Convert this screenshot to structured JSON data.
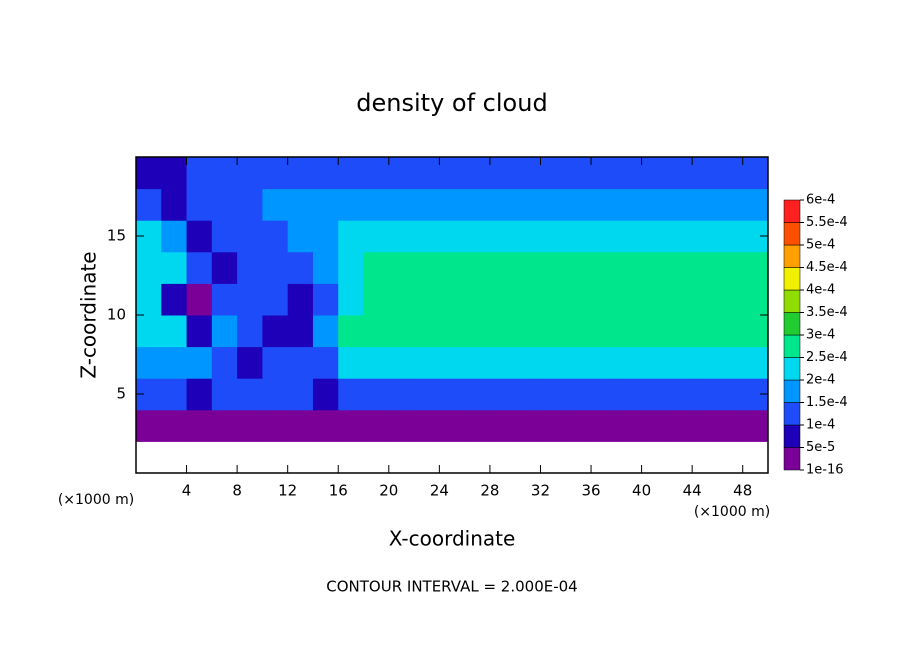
{
  "chart_data": {
    "type": "heatmap",
    "title": "density of cloud",
    "x_label": "X-coordinate",
    "y_label": "Z-coordinate",
    "x_unit": "(×1000 m)",
    "y_unit": "(×1000 m)",
    "footnote": "CONTOUR INTERVAL = 2.000E-04",
    "xlim": [
      0,
      50
    ],
    "xticks": [
      4,
      8,
      12,
      16,
      20,
      24,
      28,
      32,
      36,
      40,
      44,
      48
    ],
    "ylim": [
      0,
      20
    ],
    "yticks": [
      5,
      10,
      15
    ],
    "x": [
      1,
      3,
      5,
      7,
      9,
      11,
      13,
      15,
      17,
      19,
      21,
      23,
      25,
      27,
      29,
      31,
      33,
      35,
      37,
      39,
      41,
      43,
      45,
      47,
      49
    ],
    "y": [
      1,
      3,
      5,
      7,
      9,
      11,
      13,
      15,
      17,
      19
    ],
    "z": [
      [
        null,
        null,
        null,
        null,
        null,
        null,
        null,
        null,
        null,
        null,
        null,
        null,
        null,
        null,
        null,
        null,
        null,
        null,
        null,
        null,
        null,
        null,
        null,
        null,
        null
      ],
      [
        3e-05,
        3e-05,
        3e-05,
        3e-05,
        3e-05,
        3e-05,
        3e-05,
        3e-05,
        3e-05,
        3e-05,
        3e-05,
        3e-05,
        3e-05,
        3e-05,
        3e-05,
        3e-05,
        3e-05,
        3e-05,
        3e-05,
        3e-05,
        3e-05,
        3e-05,
        3e-05,
        3e-05,
        3e-05
      ],
      [
        0.00012,
        0.00012,
        8e-05,
        0.0001,
        0.00011,
        0.00012,
        0.00011,
        9e-05,
        0.00013,
        0.00013,
        0.00013,
        0.00013,
        0.00013,
        0.00013,
        0.00013,
        0.00013,
        0.00013,
        0.00013,
        0.00013,
        0.00013,
        0.00013,
        0.00013,
        0.00013,
        0.00013,
        0.00013
      ],
      [
        0.00019,
        0.00019,
        0.00017,
        0.00011,
        9e-05,
        0.00012,
        0.0001,
        0.00013,
        0.00021,
        0.00021,
        0.00021,
        0.00021,
        0.00021,
        0.00021,
        0.00021,
        0.00021,
        0.00021,
        0.00021,
        0.00021,
        0.00021,
        0.00021,
        0.00021,
        0.00021,
        0.00021,
        0.00021
      ],
      [
        0.00023,
        0.00023,
        6e-05,
        0.00015,
        0.0001,
        8e-05,
        6e-05,
        0.00016,
        0.00026,
        0.00026,
        0.00026,
        0.00026,
        0.00026,
        0.00026,
        0.00026,
        0.00026,
        0.00026,
        0.00026,
        0.00026,
        0.00026,
        0.00026,
        0.00026,
        0.00026,
        0.00026,
        0.00026
      ],
      [
        0.00024,
        8e-05,
        3e-05,
        0.0001,
        0.00012,
        0.00011,
        9e-05,
        0.00014,
        0.00024,
        0.00027,
        0.00027,
        0.00027,
        0.00027,
        0.00027,
        0.00027,
        0.00027,
        0.00027,
        0.00027,
        0.00027,
        0.00027,
        0.00027,
        0.00027,
        0.00027,
        0.00027,
        0.00027
      ],
      [
        0.00023,
        0.0002,
        0.0001,
        5e-05,
        0.00013,
        0.00014,
        0.00012,
        0.00015,
        0.00023,
        0.00025,
        0.00025,
        0.00025,
        0.00025,
        0.00025,
        0.00025,
        0.00025,
        0.00025,
        0.00025,
        0.00025,
        0.00025,
        0.00025,
        0.00025,
        0.00025,
        0.00025,
        0.00025
      ],
      [
        0.00021,
        0.00016,
        9e-05,
        0.0001,
        0.00012,
        0.00014,
        0.00015,
        0.00017,
        0.00021,
        0.00023,
        0.00023,
        0.00023,
        0.00023,
        0.00023,
        0.00023,
        0.00023,
        0.00023,
        0.00023,
        0.00023,
        0.00023,
        0.00023,
        0.00023,
        0.00023,
        0.00023,
        0.00023
      ],
      [
        0.00014,
        6e-05,
        0.00012,
        0.00013,
        0.00014,
        0.00015,
        0.00015,
        0.00015,
        0.00016,
        0.00018,
        0.00018,
        0.00018,
        0.00018,
        0.00018,
        0.00018,
        0.00018,
        0.00018,
        0.00018,
        0.00018,
        0.00018,
        0.00018,
        0.00018,
        0.00017,
        0.00017,
        0.00017
      ],
      [
        8e-05,
        5e-05,
        0.0001,
        0.0001,
        0.0001,
        0.0001,
        0.0001,
        0.0001,
        0.0001,
        0.00012,
        0.00012,
        0.00012,
        0.00012,
        0.00012,
        0.00012,
        0.00012,
        0.00012,
        0.00012,
        0.00012,
        0.00012,
        0.00011,
        0.00011,
        0.00011,
        0.00011,
        0.00011
      ]
    ],
    "colorbar": {
      "levels": [
        {
          "value": 1e-16,
          "label": "1e-16"
        },
        {
          "value": 5e-05,
          "label": "5e-5"
        },
        {
          "value": 0.0001,
          "label": "1e-4"
        },
        {
          "value": 0.00015,
          "label": "1.5e-4"
        },
        {
          "value": 0.0002,
          "label": "2e-4"
        },
        {
          "value": 0.00025,
          "label": "2.5e-4"
        },
        {
          "value": 0.0003,
          "label": "3e-4"
        },
        {
          "value": 0.00035,
          "label": "3.5e-4"
        },
        {
          "value": 0.0004,
          "label": "4e-4"
        },
        {
          "value": 0.00045,
          "label": "4.5e-4"
        },
        {
          "value": 0.0005,
          "label": "5e-4"
        },
        {
          "value": 0.00055,
          "label": "5.5e-4"
        },
        {
          "value": 0.0006,
          "label": "6e-4"
        }
      ],
      "colors": [
        "#7a0098",
        "#1e00b8",
        "#1e4cf8",
        "#0096ff",
        "#00d8f0",
        "#00e68c",
        "#20cc30",
        "#90dc00",
        "#f0f000",
        "#ffa000",
        "#ff5000",
        "#ff2020"
      ]
    }
  }
}
